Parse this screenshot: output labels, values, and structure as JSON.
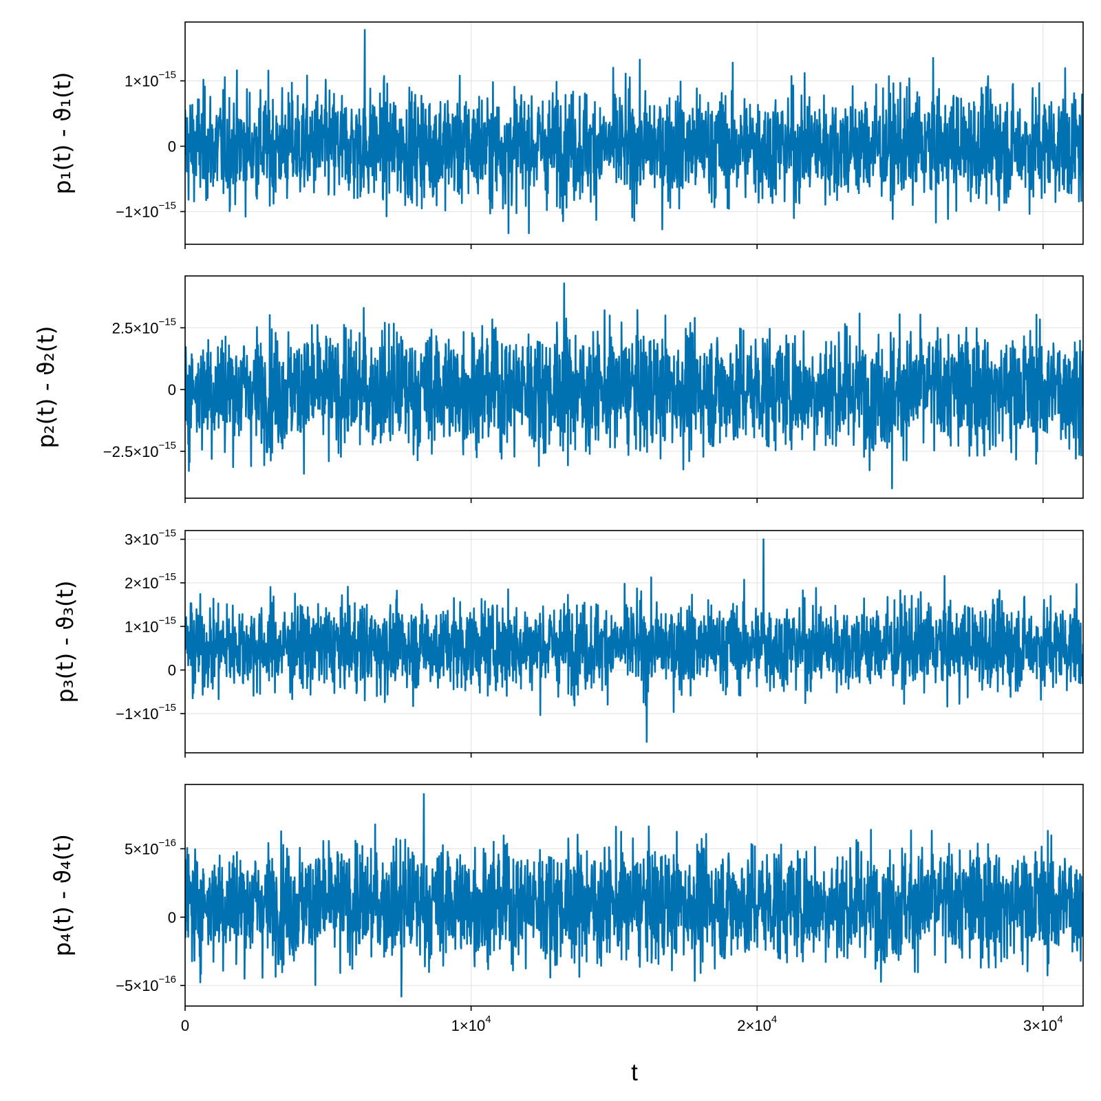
{
  "chart_data": {
    "type": "line",
    "xlabel": "t",
    "xlim": [
      0,
      31400
    ],
    "xticks": [
      {
        "value": 0,
        "label": "0",
        "exp": ""
      },
      {
        "value": 10000,
        "label": "1×10",
        "exp": "4"
      },
      {
        "value": 20000,
        "label": "2×10",
        "exp": "4"
      },
      {
        "value": 30000,
        "label": "3×10",
        "exp": "4"
      }
    ],
    "series_color": "#0072b2",
    "grid": true,
    "panels": [
      {
        "ylabel": "p₁(t) - ϑ₁(t)",
        "ylim": [
          -1.5e-15,
          1.9e-15
        ],
        "yticks": [
          {
            "value": 1e-15,
            "label": "1×10",
            "exp": "−15"
          },
          {
            "value": 0,
            "label": "0",
            "exp": ""
          },
          {
            "value": -1e-15,
            "label": "−1×10",
            "exp": "−15"
          }
        ],
        "envelope": {
          "center": 0.0,
          "spread": 4.2e-16,
          "max": 1.78e-15,
          "min": -1.33e-15
        }
      },
      {
        "ylabel": "p₂(t) - ϑ₂(t)",
        "ylim": [
          -4.4e-15,
          4.6e-15
        ],
        "yticks": [
          {
            "value": 2.5e-15,
            "label": "2.5×10",
            "exp": "−15"
          },
          {
            "value": 0,
            "label": "0",
            "exp": ""
          },
          {
            "value": -2.5e-15,
            "label": "−2.5×10",
            "exp": "−15"
          }
        ],
        "envelope": {
          "center": 0.0,
          "spread": 1.2e-15,
          "max": 4.3e-15,
          "min": -4e-15
        }
      },
      {
        "ylabel": "p₃(t) - ϑ₃(t)",
        "ylim": [
          -1.9e-15,
          3.2e-15
        ],
        "yticks": [
          {
            "value": 3e-15,
            "label": "3×10",
            "exp": "−15"
          },
          {
            "value": 2e-15,
            "label": "2×10",
            "exp": "−15"
          },
          {
            "value": 1e-15,
            "label": "1×10",
            "exp": "−15"
          },
          {
            "value": 0,
            "label": "0",
            "exp": ""
          },
          {
            "value": -1e-15,
            "label": "−1×10",
            "exp": "−15"
          }
        ],
        "envelope": {
          "center": 5.5e-16,
          "spread": 5e-16,
          "max": 3e-15,
          "min": -1.65e-15
        }
      },
      {
        "ylabel": "p₄(t) - ϑ₄(t)",
        "ylim": [
          -6.5e-16,
          9.7e-16
        ],
        "yticks": [
          {
            "value": 5e-16,
            "label": "5×10",
            "exp": "−16"
          },
          {
            "value": 0,
            "label": "0",
            "exp": ""
          },
          {
            "value": -5e-16,
            "label": "−5×10",
            "exp": "−16"
          }
        ],
        "envelope": {
          "center": 1e-16,
          "spread": 2.1e-16,
          "max": 9e-16,
          "min": -5.8e-16
        }
      }
    ]
  }
}
